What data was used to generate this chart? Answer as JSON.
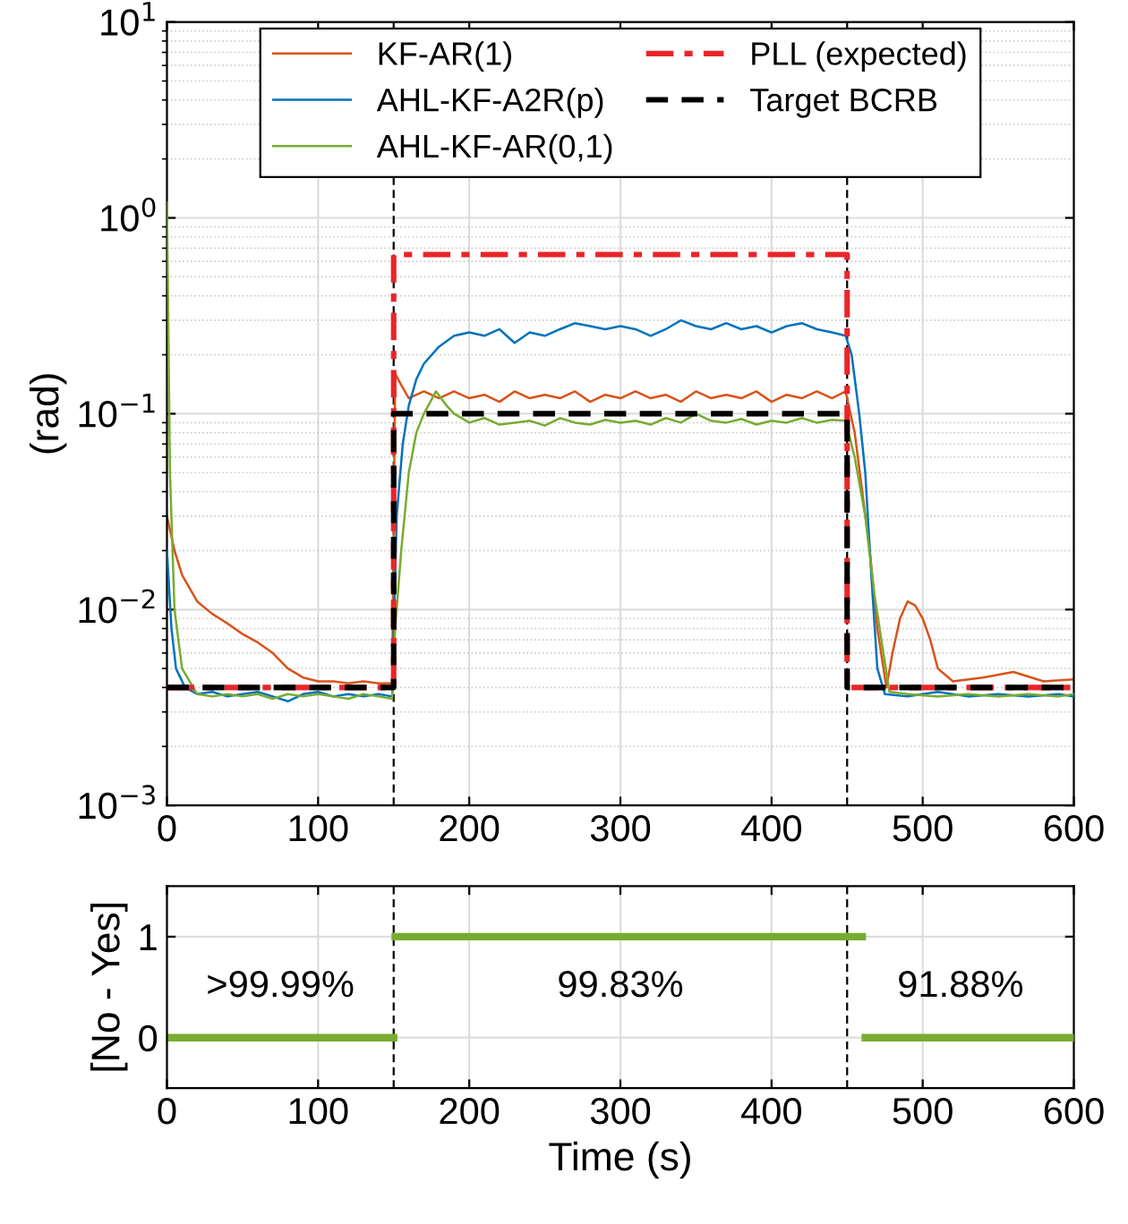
{
  "chart_data": [
    {
      "type": "line",
      "ylabel": "(rad)",
      "log": "y",
      "grid": true,
      "legend": "top",
      "xlim": [
        0,
        600
      ],
      "xticks": [
        0,
        100,
        200,
        300,
        400,
        500,
        600
      ],
      "ylim": [
        0.001,
        10
      ],
      "yticks": [
        {
          "value": 0.001,
          "label": "10$^{−3}$"
        },
        {
          "value": 0.01,
          "label": "10$^{−2}$"
        },
        {
          "value": 0.1,
          "label": "10$^{−1}$"
        },
        {
          "value": 1,
          "label": "10$^{0}$"
        },
        {
          "value": 10,
          "label": "10$^{1}$"
        }
      ],
      "ref_lines": [
        {
          "axis": "x",
          "value": 150,
          "color": "#000000",
          "line_style": "dashed"
        },
        {
          "axis": "x",
          "value": 450,
          "color": "#000000",
          "line_style": "dashed"
        }
      ],
      "series": [
        {
          "name": "KF-AR(1)",
          "color": "#d95319",
          "line_style": "solid",
          "x": [
            0,
            5,
            10,
            20,
            30,
            40,
            50,
            60,
            70,
            80,
            90,
            100,
            110,
            120,
            130,
            140,
            149,
            151,
            155,
            160,
            170,
            180,
            190,
            200,
            210,
            220,
            230,
            240,
            250,
            260,
            270,
            280,
            290,
            300,
            310,
            320,
            330,
            340,
            350,
            360,
            370,
            380,
            390,
            400,
            410,
            420,
            430,
            440,
            449,
            455,
            460,
            465,
            470,
            476,
            480,
            485,
            490,
            495,
            500,
            505,
            510,
            520,
            540,
            560,
            580,
            600
          ],
          "values": [
            0.03,
            0.02,
            0.015,
            0.011,
            0.0095,
            0.0085,
            0.0075,
            0.0068,
            0.006,
            0.005,
            0.0045,
            0.0043,
            0.0043,
            0.0042,
            0.0043,
            0.0042,
            0.0042,
            0.16,
            0.14,
            0.12,
            0.13,
            0.12,
            0.13,
            0.12,
            0.125,
            0.115,
            0.13,
            0.12,
            0.125,
            0.12,
            0.13,
            0.115,
            0.125,
            0.12,
            0.13,
            0.12,
            0.125,
            0.115,
            0.13,
            0.12,
            0.125,
            0.12,
            0.13,
            0.115,
            0.125,
            0.12,
            0.13,
            0.12,
            0.13,
            0.08,
            0.04,
            0.02,
            0.008,
            0.004,
            0.006,
            0.009,
            0.011,
            0.0105,
            0.009,
            0.007,
            0.005,
            0.0043,
            0.0045,
            0.0048,
            0.0043,
            0.0044
          ]
        },
        {
          "name": "AHL-KF-A2R(p)",
          "color": "#0072bd",
          "line_style": "solid",
          "x": [
            0,
            3,
            6,
            12,
            20,
            30,
            40,
            50,
            60,
            70,
            80,
            90,
            100,
            110,
            120,
            130,
            140,
            149,
            152,
            156,
            160,
            165,
            170,
            180,
            190,
            200,
            210,
            220,
            230,
            240,
            250,
            260,
            270,
            280,
            290,
            300,
            310,
            320,
            330,
            340,
            350,
            360,
            370,
            380,
            390,
            400,
            410,
            420,
            430,
            440,
            449,
            453,
            458,
            462,
            466,
            470,
            475,
            490,
            510,
            530,
            550,
            570,
            590,
            600
          ],
          "values": [
            0.02,
            0.008,
            0.005,
            0.004,
            0.0037,
            0.0038,
            0.0036,
            0.0037,
            0.0038,
            0.0036,
            0.0034,
            0.0037,
            0.0038,
            0.0036,
            0.0037,
            0.0036,
            0.0037,
            0.0036,
            0.03,
            0.07,
            0.11,
            0.15,
            0.18,
            0.22,
            0.25,
            0.26,
            0.25,
            0.27,
            0.23,
            0.26,
            0.25,
            0.27,
            0.29,
            0.28,
            0.27,
            0.28,
            0.27,
            0.25,
            0.27,
            0.3,
            0.28,
            0.27,
            0.29,
            0.27,
            0.28,
            0.26,
            0.28,
            0.29,
            0.27,
            0.26,
            0.25,
            0.2,
            0.1,
            0.05,
            0.015,
            0.005,
            0.0037,
            0.0036,
            0.0038,
            0.0036,
            0.0037,
            0.0036,
            0.0037,
            0.0036
          ]
        },
        {
          "name": "AHL-KF-AR(0,1)",
          "color": "#77ac30",
          "line_style": "solid",
          "x": [
            0,
            2,
            5,
            10,
            20,
            30,
            40,
            50,
            60,
            70,
            80,
            90,
            100,
            110,
            120,
            130,
            140,
            149,
            151,
            155,
            160,
            165,
            170,
            178,
            185,
            190,
            200,
            210,
            220,
            230,
            240,
            250,
            260,
            270,
            280,
            290,
            300,
            310,
            320,
            330,
            340,
            350,
            360,
            370,
            380,
            390,
            400,
            410,
            420,
            430,
            440,
            449,
            455,
            462,
            468,
            474,
            478,
            490,
            510,
            530,
            550,
            570,
            590,
            600
          ],
          "values": [
            1.2,
            0.05,
            0.01,
            0.005,
            0.0037,
            0.0036,
            0.0037,
            0.0036,
            0.0037,
            0.0035,
            0.0037,
            0.0036,
            0.0037,
            0.0036,
            0.0035,
            0.0037,
            0.0036,
            0.0035,
            0.008,
            0.02,
            0.05,
            0.08,
            0.1,
            0.13,
            0.11,
            0.1,
            0.09,
            0.095,
            0.088,
            0.09,
            0.092,
            0.087,
            0.095,
            0.09,
            0.088,
            0.093,
            0.09,
            0.092,
            0.088,
            0.095,
            0.09,
            0.1,
            0.092,
            0.09,
            0.094,
            0.088,
            0.092,
            0.09,
            0.095,
            0.09,
            0.093,
            0.092,
            0.06,
            0.03,
            0.012,
            0.006,
            0.0038,
            0.0037,
            0.0036,
            0.0037,
            0.0036,
            0.0037,
            0.0036,
            0.0037
          ]
        },
        {
          "name": "PLL (expected)",
          "color": "#e8262a",
          "line_style": "dashdot",
          "x": [
            0,
            150,
            150,
            450,
            450,
            600
          ],
          "values": [
            0.004,
            0.004,
            0.65,
            0.65,
            0.004,
            0.004
          ]
        },
        {
          "name": "Target BCRB",
          "color": "#000000",
          "line_style": "dashed",
          "x": [
            0,
            150,
            150,
            450,
            450,
            600
          ],
          "values": [
            0.004,
            0.004,
            0.1,
            0.1,
            0.004,
            0.004
          ]
        }
      ]
    },
    {
      "type": "line",
      "xlabel": "Time (s)",
      "ylabel": "[No - Yes]",
      "grid": true,
      "xlim": [
        0,
        600
      ],
      "xticks": [
        0,
        100,
        200,
        300,
        400,
        500,
        600
      ],
      "ylim": [
        -0.5,
        1.5
      ],
      "yticks": [
        0,
        1
      ],
      "ref_lines": [
        {
          "axis": "x",
          "value": 150,
          "color": "#000000",
          "line_style": "dashed"
        },
        {
          "axis": "x",
          "value": 450,
          "color": "#000000",
          "line_style": "dashed"
        }
      ],
      "annotations": [
        ">99.99%",
        "99.83%",
        "91.88%"
      ],
      "series": [
        {
          "color": "#77ac30",
          "line_style": "solid",
          "x": [
            0,
            150
          ],
          "values": [
            0,
            0
          ]
        },
        {
          "color": "#77ac30",
          "line_style": "solid",
          "x": [
            151,
            460
          ],
          "values": [
            1,
            1
          ]
        },
        {
          "color": "#77ac30",
          "line_style": "solid",
          "x": [
            462,
            600
          ],
          "values": [
            0,
            0
          ]
        }
      ]
    }
  ]
}
